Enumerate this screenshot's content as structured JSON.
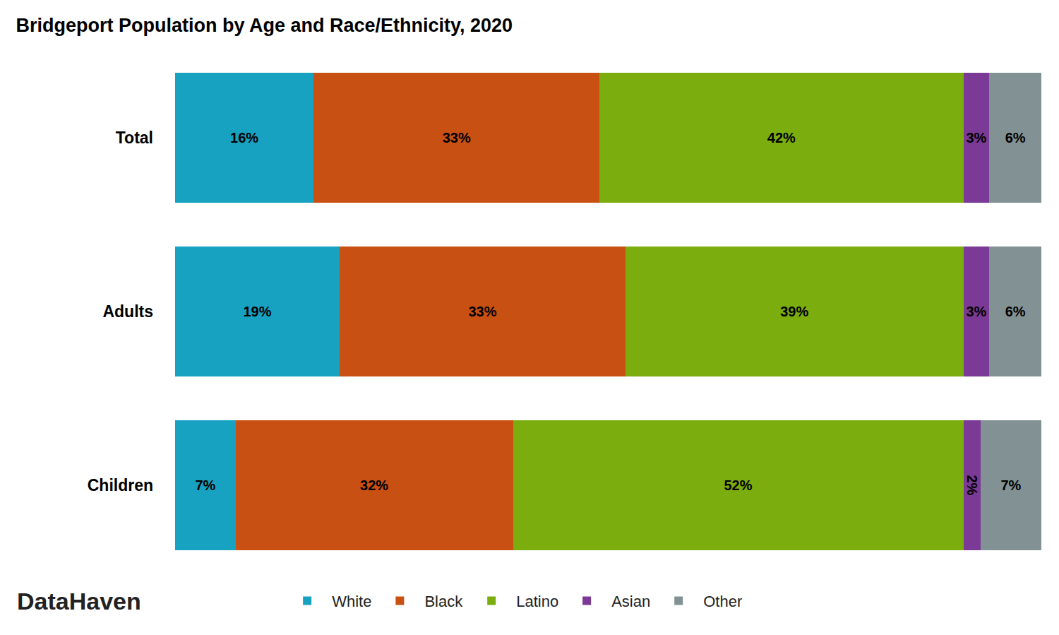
{
  "chart_data": {
    "type": "bar",
    "title": "Bridgeport Population by Age and Race/Ethnicity, 2020",
    "annotations": [
      "DataHaven"
    ],
    "orientation": "horizontal",
    "stacked": true,
    "data_labels": true,
    "tick_labels": "y",
    "grid": false,
    "legend": "bottom",
    "categories": [
      "Total",
      "Adults",
      "Children"
    ],
    "xlim": [
      0,
      100
    ],
    "series": [
      {
        "name": "White",
        "color": "#17a2c1",
        "values": [
          16,
          19,
          7
        ],
        "value_labels": [
          "16%",
          "19%",
          "7%"
        ]
      },
      {
        "name": "Black",
        "color": "#c95013",
        "values": [
          33,
          33,
          32
        ],
        "value_labels": [
          "33%",
          "33%",
          "32%"
        ]
      },
      {
        "name": "Latino",
        "color": "#7bad0e",
        "values": [
          42,
          39,
          52
        ],
        "value_labels": [
          "42%",
          "39%",
          "52%"
        ]
      },
      {
        "name": "Asian",
        "color": "#7a3a96",
        "values": [
          3,
          3,
          2
        ],
        "value_labels": [
          "3%",
          "3%",
          "2%"
        ]
      },
      {
        "name": "Other",
        "color": "#829294",
        "values": [
          6,
          6,
          7
        ],
        "value_labels": [
          "6%",
          "6%",
          "7%"
        ]
      }
    ]
  }
}
